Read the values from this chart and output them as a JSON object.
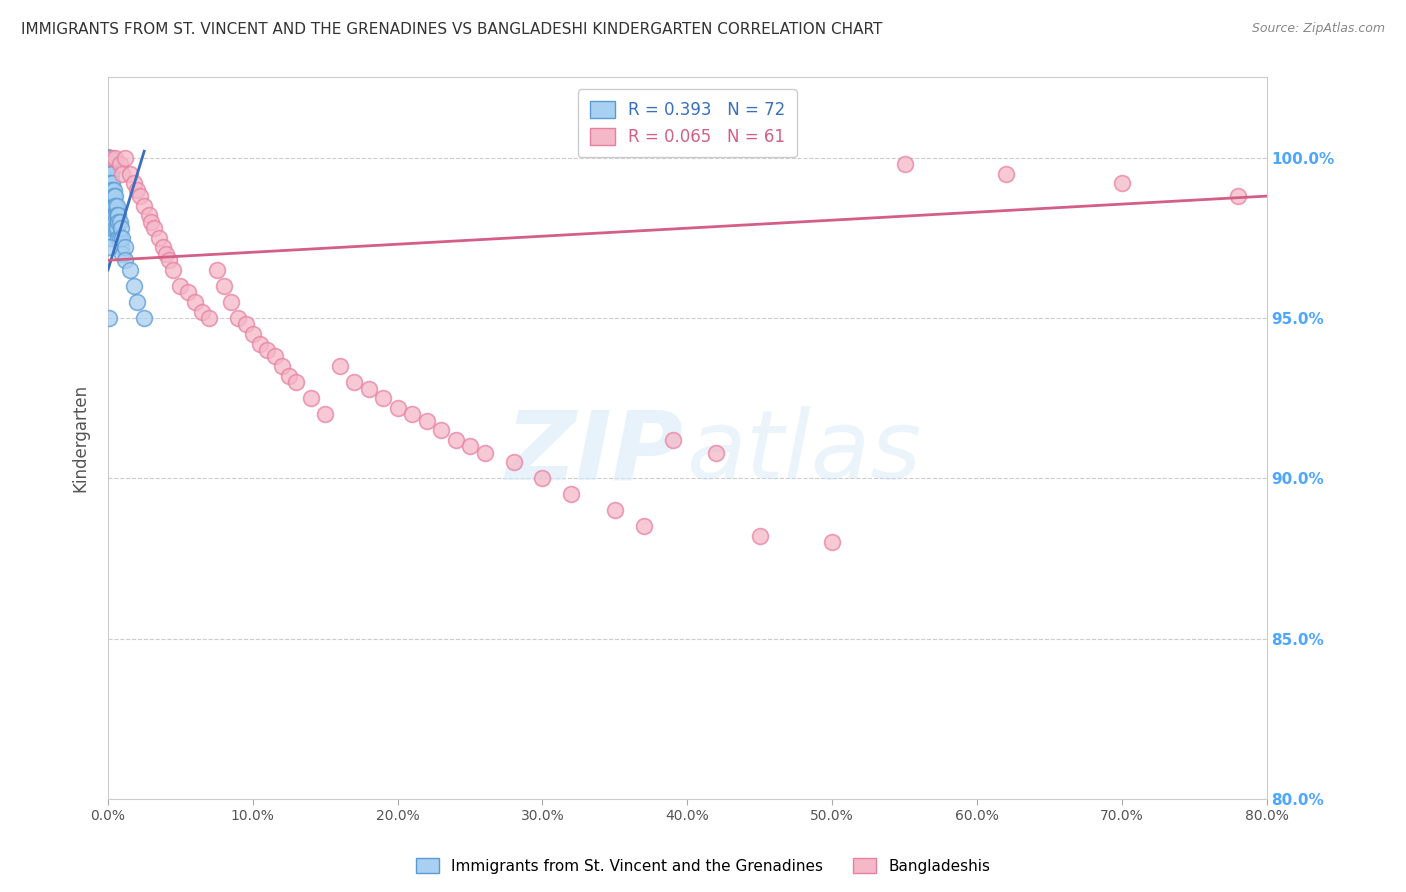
{
  "title": "IMMIGRANTS FROM ST. VINCENT AND THE GRENADINES VS BANGLADESHI KINDERGARTEN CORRELATION CHART",
  "source": "Source: ZipAtlas.com",
  "ylabel": "Kindergarten",
  "y_tick_values": [
    100.0,
    95.0,
    90.0,
    85.0,
    80.0
  ],
  "x_tick_values": [
    0.0,
    10.0,
    20.0,
    30.0,
    40.0,
    50.0,
    60.0,
    70.0,
    80.0
  ],
  "xlim": [
    0.0,
    80.0
  ],
  "ylim": [
    80.0,
    102.5
  ],
  "blue_color": "#a8d0f0",
  "blue_edge_color": "#5b9bd5",
  "pink_color": "#f4b8c8",
  "pink_edge_color": "#e87fa0",
  "trend_blue_color": "#3a6fbf",
  "trend_pink_color": "#d45f85",
  "legend_R_blue": "R = 0.393",
  "legend_N_blue": "N = 72",
  "legend_R_pink": "R = 0.065",
  "legend_N_pink": "N = 61",
  "legend_label_blue": "Immigrants from St. Vincent and the Grenadines",
  "legend_label_pink": "Bangladeshis",
  "background_color": "#ffffff",
  "grid_color": "#cccccc",
  "title_color": "#333333",
  "right_tick_color": "#4da6ff",
  "blue_x": [
    0.05,
    0.05,
    0.05,
    0.05,
    0.05,
    0.05,
    0.05,
    0.05,
    0.05,
    0.05,
    0.05,
    0.05,
    0.05,
    0.05,
    0.05,
    0.05,
    0.05,
    0.05,
    0.05,
    0.05,
    0.1,
    0.1,
    0.1,
    0.1,
    0.1,
    0.1,
    0.1,
    0.1,
    0.1,
    0.1,
    0.2,
    0.2,
    0.2,
    0.2,
    0.2,
    0.2,
    0.2,
    0.2,
    0.3,
    0.3,
    0.3,
    0.3,
    0.3,
    0.3,
    0.4,
    0.4,
    0.4,
    0.4,
    0.5,
    0.5,
    0.5,
    0.5,
    0.6,
    0.6,
    0.6,
    0.7,
    0.7,
    0.7,
    0.8,
    0.8,
    0.9,
    0.9,
    1.0,
    1.0,
    1.2,
    1.2,
    1.5,
    1.8,
    2.0,
    2.5,
    0.05,
    0.05
  ],
  "blue_y": [
    100.0,
    100.0,
    100.0,
    100.0,
    100.0,
    100.0,
    100.0,
    100.0,
    100.0,
    99.8,
    99.5,
    99.5,
    99.2,
    99.0,
    99.0,
    98.8,
    98.5,
    98.2,
    98.0,
    97.8,
    99.8,
    99.5,
    99.2,
    99.0,
    98.8,
    98.5,
    98.2,
    98.0,
    97.8,
    97.5,
    99.5,
    99.2,
    99.0,
    98.8,
    98.5,
    98.2,
    98.0,
    97.5,
    99.2,
    99.0,
    98.8,
    98.5,
    98.2,
    97.8,
    99.0,
    98.8,
    98.5,
    98.0,
    98.8,
    98.5,
    98.2,
    97.8,
    98.5,
    98.2,
    97.8,
    98.2,
    98.0,
    97.5,
    98.0,
    97.5,
    97.8,
    97.2,
    97.5,
    97.0,
    97.2,
    96.8,
    96.5,
    96.0,
    95.5,
    95.0,
    97.2,
    95.0
  ],
  "pink_x": [
    0.3,
    0.5,
    0.8,
    1.0,
    1.2,
    1.5,
    1.8,
    2.0,
    2.2,
    2.5,
    2.8,
    3.0,
    3.2,
    3.5,
    3.8,
    4.0,
    4.2,
    4.5,
    5.0,
    5.5,
    6.0,
    6.5,
    7.0,
    7.5,
    8.0,
    8.5,
    9.0,
    9.5,
    10.0,
    10.5,
    11.0,
    11.5,
    12.0,
    12.5,
    13.0,
    14.0,
    15.0,
    16.0,
    17.0,
    18.0,
    19.0,
    20.0,
    21.0,
    22.0,
    23.0,
    24.0,
    25.0,
    26.0,
    28.0,
    30.0,
    32.0,
    35.0,
    37.0,
    39.0,
    42.0,
    45.0,
    50.0,
    55.0,
    62.0,
    70.0,
    78.0
  ],
  "pink_y": [
    100.0,
    100.0,
    99.8,
    99.5,
    100.0,
    99.5,
    99.2,
    99.0,
    98.8,
    98.5,
    98.2,
    98.0,
    97.8,
    97.5,
    97.2,
    97.0,
    96.8,
    96.5,
    96.0,
    95.8,
    95.5,
    95.2,
    95.0,
    96.5,
    96.0,
    95.5,
    95.0,
    94.8,
    94.5,
    94.2,
    94.0,
    93.8,
    93.5,
    93.2,
    93.0,
    92.5,
    92.0,
    93.5,
    93.0,
    92.8,
    92.5,
    92.2,
    92.0,
    91.8,
    91.5,
    91.2,
    91.0,
    90.8,
    90.5,
    90.0,
    89.5,
    89.0,
    88.5,
    91.2,
    90.8,
    88.2,
    88.0,
    99.8,
    99.5,
    99.2,
    98.8
  ],
  "trend_pink_x0": 0.0,
  "trend_pink_x1": 80.0,
  "trend_pink_y0": 96.8,
  "trend_pink_y1": 98.8,
  "trend_blue_x0": 0.0,
  "trend_blue_x1": 2.5,
  "trend_blue_y0": 96.5,
  "trend_blue_y1": 100.2
}
